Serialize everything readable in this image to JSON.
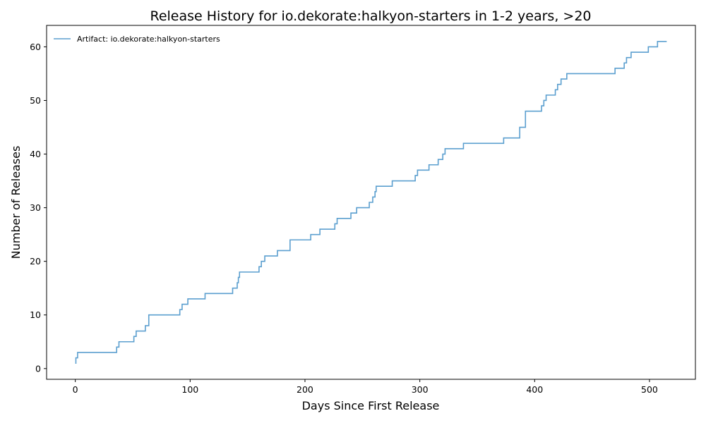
{
  "chart_data": {
    "type": "line",
    "title": "Release History for io.dekorate:halkyon-starters in 1-2 years, >20",
    "xlabel": "Days Since First Release",
    "ylabel": "Number of Releases",
    "xlim": [
      -25,
      540
    ],
    "ylim": [
      -2,
      64
    ],
    "xticks": [
      0,
      100,
      200,
      300,
      400,
      500
    ],
    "yticks": [
      0,
      10,
      20,
      30,
      40,
      50,
      60
    ],
    "grid": false,
    "legend_position": "top-left",
    "series": [
      {
        "name": "Artifact: io.dekorate:halkyon-starters",
        "color": "#5b9fcf",
        "step": "post",
        "x": [
          0,
          0.5,
          2,
          36,
          37,
          38,
          51,
          52,
          53,
          61,
          64,
          65,
          91,
          93,
          98,
          113,
          137,
          141,
          142,
          143,
          144,
          160,
          162,
          163,
          165,
          176,
          187,
          205,
          213,
          226,
          227,
          228,
          240,
          245,
          256,
          259,
          260,
          261,
          262,
          263,
          276,
          296,
          297,
          298,
          308,
          316,
          320,
          321,
          322,
          338,
          373,
          387,
          392,
          393,
          406,
          408,
          409,
          410,
          418,
          420,
          423,
          428,
          470,
          478,
          479,
          480,
          484,
          499,
          507,
          515
        ],
        "y": [
          1,
          2,
          3,
          4,
          4,
          5,
          6,
          6,
          7,
          8,
          10,
          10,
          11,
          12,
          13,
          14,
          15,
          16,
          17,
          18,
          18,
          19,
          20,
          20,
          21,
          22,
          24,
          25,
          26,
          27,
          27,
          28,
          29,
          30,
          31,
          32,
          32,
          33,
          34,
          34,
          35,
          36,
          36,
          37,
          38,
          39,
          40,
          40,
          41,
          42,
          43,
          45,
          48,
          48,
          49,
          50,
          50,
          51,
          52,
          53,
          54,
          55,
          56,
          57,
          57,
          58,
          59,
          60,
          61,
          61
        ]
      }
    ]
  }
}
